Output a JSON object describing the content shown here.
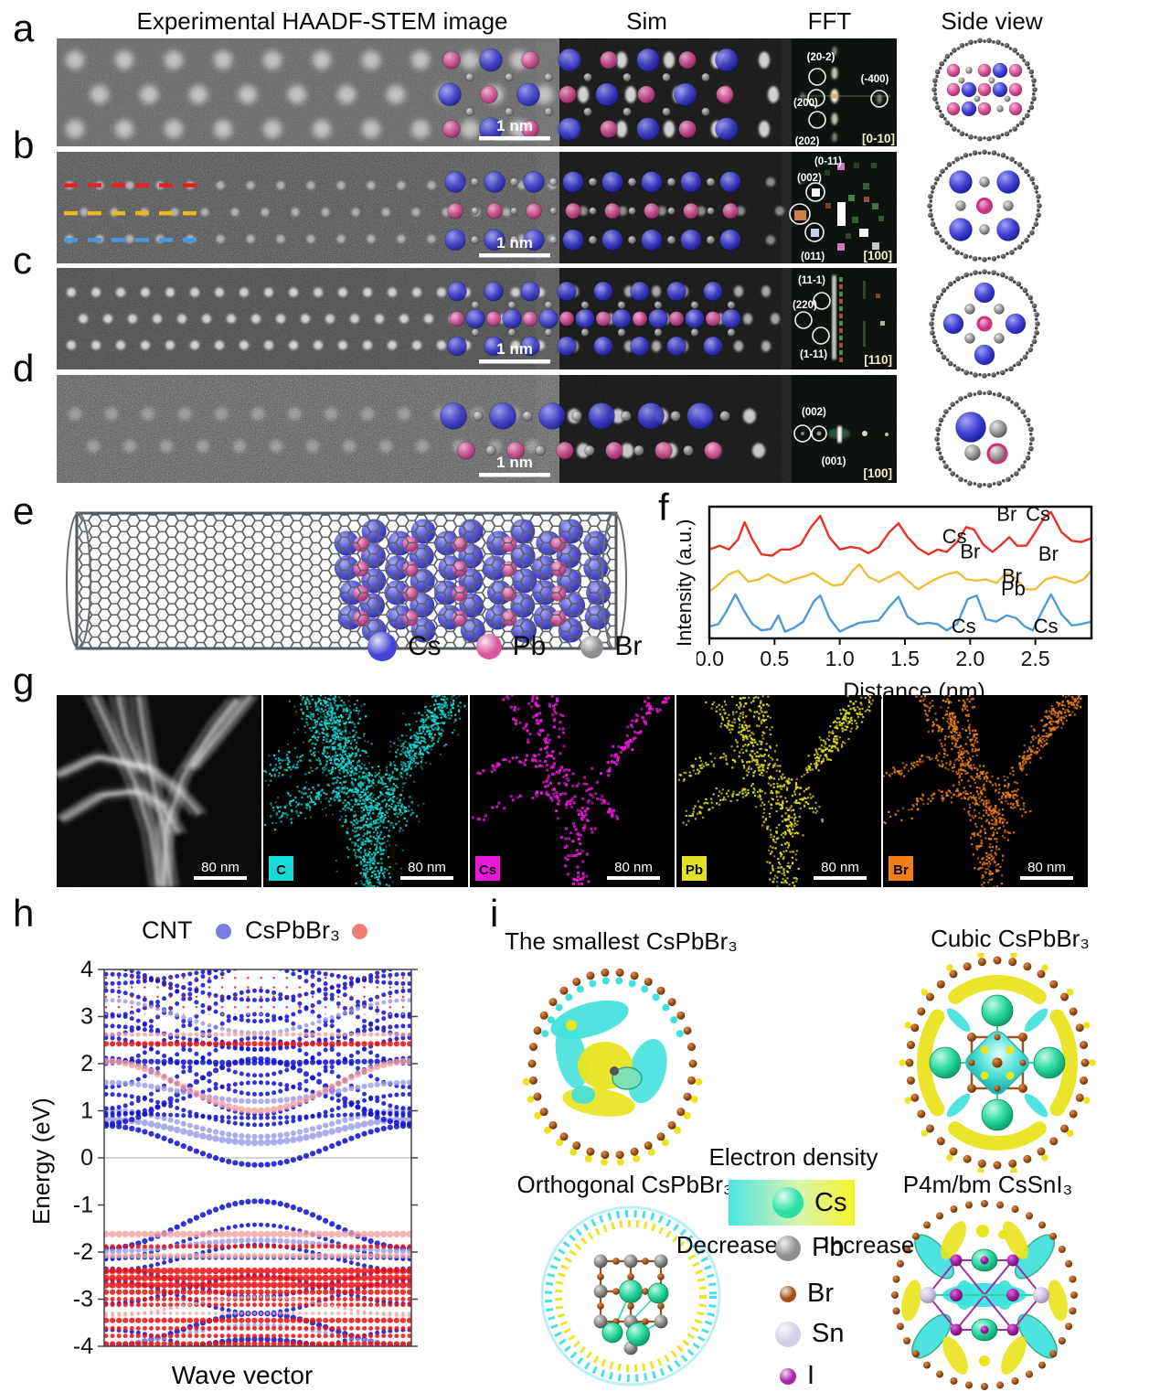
{
  "headers": {
    "experimental": "Experimental HAADF-STEM image",
    "sim": "Sim",
    "fft": "FFT",
    "side_view": "Side view"
  },
  "panel_labels": {
    "a": "a",
    "b": "b",
    "c": "c",
    "d": "d",
    "e": "e",
    "f": "f",
    "g": "g",
    "h": "h",
    "i": "i"
  },
  "atoms": {
    "Cs": {
      "label": "Cs",
      "color": "#4444d8"
    },
    "Pb": {
      "label": "Pb",
      "color": "#d8569a"
    },
    "Br": {
      "label": "Br",
      "color": "#8e8e8e"
    }
  },
  "rows": [
    {
      "label": "a",
      "scale_bar": "1 nm",
      "zone": "[0-10]",
      "fft_spots": [
        "(20-2)",
        "(-400)",
        "(200)",
        "(202)"
      ]
    },
    {
      "label": "b",
      "scale_bar": "1 nm",
      "zone": "[100]",
      "fft_spots": [
        "(0-11)",
        "(002)",
        "(011)"
      ]
    },
    {
      "label": "c",
      "scale_bar": "1 nm",
      "zone": "[110]",
      "fft_spots": [
        "(11-1)",
        "(220)",
        "(1-11)"
      ]
    },
    {
      "label": "d",
      "scale_bar": "1 nm",
      "zone": "[100]",
      "fft_spots": [
        "(002)",
        "(001)"
      ]
    }
  ],
  "panel_e": {
    "legend": [
      {
        "label": "Cs",
        "color": "#4444d4"
      },
      {
        "label": "Pb",
        "color": "#d8569a"
      },
      {
        "label": "Br",
        "color": "#8e8e8e"
      }
    ]
  },
  "panel_g": {
    "maps": [
      {
        "label": "",
        "scale_bar": "80 nm",
        "kind": "haadf",
        "color": "#ffffff"
      },
      {
        "label": "C",
        "scale_bar": "80 nm",
        "kind": "map",
        "color": "#15dcd8"
      },
      {
        "label": "Cs",
        "scale_bar": "80 nm",
        "kind": "map",
        "color": "#ee18dd"
      },
      {
        "label": "Pb",
        "scale_bar": "80 nm",
        "kind": "map",
        "color": "#e6e122",
        "count": 900
      },
      {
        "label": "Br",
        "scale_bar": "80 nm",
        "kind": "map",
        "color": "#ef7f16"
      }
    ]
  },
  "panel_i": {
    "titles": {
      "smallest": "The smallest CsPbBr₃",
      "cubic": "Cubic CsPbBr₃",
      "orthogonal": "Orthogonal CsPbBr₃",
      "p4mbm": "P4m/bm CsSnI₃"
    },
    "colorbar": {
      "title": "Electron density",
      "left_label": "Decrease",
      "right_label": "Increase",
      "from": "#49e6e4",
      "to": "#f4f42a"
    },
    "legend": [
      {
        "label": "Cs",
        "color": "#2be0a6",
        "size": 34
      },
      {
        "label": "Pb",
        "color": "#8f8f8f",
        "size": 28
      },
      {
        "label": "Br",
        "color": "#a24f12",
        "size": 18
      },
      {
        "label": "Sn",
        "color": "#d4cde6",
        "size": 28
      },
      {
        "label": "I",
        "color": "#a822a8",
        "size": 18
      }
    ],
    "iso": {
      "cyan": "#40e0dc",
      "yellow": "#e9e41f",
      "ring": "#8a4a16",
      "bond": "#a0521d",
      "teal": "#2ad8a0"
    }
  },
  "chart_data": [
    {
      "id": "intensity-profile",
      "type": "line",
      "title": "",
      "xlabel": "Distance (nm)",
      "ylabel": "Intensity (a.u.)",
      "xlim": [
        0,
        2.93
      ],
      "xticks": [
        [
          "0.0",
          0
        ],
        [
          "0.5",
          0.5
        ],
        [
          "1.0",
          1.0
        ],
        [
          "1.5",
          1.5
        ],
        [
          "2.0",
          2.0
        ],
        [
          "2.5",
          2.5
        ]
      ],
      "series": [
        {
          "name": "red-line",
          "color": "#e63226",
          "points": [
            [
              0,
              0.7
            ],
            [
              0.08,
              0.73
            ],
            [
              0.15,
              0.7
            ],
            [
              0.22,
              0.78
            ],
            [
              0.27,
              0.92
            ],
            [
              0.33,
              0.78
            ],
            [
              0.4,
              0.66
            ],
            [
              0.48,
              0.65
            ],
            [
              0.55,
              0.7
            ],
            [
              0.62,
              0.7
            ],
            [
              0.7,
              0.74
            ],
            [
              0.78,
              0.88
            ],
            [
              0.85,
              0.97
            ],
            [
              0.92,
              0.8
            ],
            [
              1.0,
              0.7
            ],
            [
              1.08,
              0.72
            ],
            [
              1.15,
              0.71
            ],
            [
              1.22,
              0.67
            ],
            [
              1.3,
              0.72
            ],
            [
              1.38,
              0.84
            ],
            [
              1.45,
              0.91
            ],
            [
              1.52,
              0.8
            ],
            [
              1.6,
              0.71
            ],
            [
              1.68,
              0.66
            ],
            [
              1.75,
              0.7
            ],
            [
              1.82,
              0.68
            ],
            [
              1.9,
              0.76
            ],
            [
              1.97,
              0.88
            ],
            [
              2.03,
              0.86
            ],
            [
              2.1,
              0.74
            ],
            [
              2.17,
              0.68
            ],
            [
              2.24,
              0.74
            ],
            [
              2.3,
              0.8
            ],
            [
              2.36,
              0.73
            ],
            [
              2.43,
              0.73
            ],
            [
              2.5,
              0.84
            ],
            [
              2.57,
              0.96
            ],
            [
              2.62,
              1.0
            ],
            [
              2.7,
              0.84
            ],
            [
              2.78,
              0.77
            ],
            [
              2.85,
              0.76
            ],
            [
              2.93,
              0.79
            ]
          ]
        },
        {
          "name": "yellow-line",
          "color": "#eebd3a",
          "points": [
            [
              0,
              0.36
            ],
            [
              0.07,
              0.42
            ],
            [
              0.15,
              0.5
            ],
            [
              0.22,
              0.53
            ],
            [
              0.3,
              0.44
            ],
            [
              0.38,
              0.46
            ],
            [
              0.45,
              0.5
            ],
            [
              0.52,
              0.46
            ],
            [
              0.58,
              0.43
            ],
            [
              0.65,
              0.46
            ],
            [
              0.72,
              0.48
            ],
            [
              0.8,
              0.51
            ],
            [
              0.88,
              0.45
            ],
            [
              0.95,
              0.41
            ],
            [
              1.02,
              0.42
            ],
            [
              1.1,
              0.53
            ],
            [
              1.15,
              0.58
            ],
            [
              1.22,
              0.48
            ],
            [
              1.3,
              0.44
            ],
            [
              1.38,
              0.48
            ],
            [
              1.45,
              0.52
            ],
            [
              1.52,
              0.45
            ],
            [
              1.6,
              0.38
            ],
            [
              1.68,
              0.43
            ],
            [
              1.75,
              0.47
            ],
            [
              1.82,
              0.5
            ],
            [
              1.9,
              0.52
            ],
            [
              1.97,
              0.46
            ],
            [
              2.05,
              0.45
            ],
            [
              2.12,
              0.46
            ],
            [
              2.2,
              0.43
            ],
            [
              2.28,
              0.51
            ],
            [
              2.35,
              0.47
            ],
            [
              2.42,
              0.38
            ],
            [
              2.5,
              0.38
            ],
            [
              2.58,
              0.46
            ],
            [
              2.65,
              0.48
            ],
            [
              2.72,
              0.46
            ],
            [
              2.8,
              0.43
            ],
            [
              2.87,
              0.46
            ],
            [
              2.93,
              0.53
            ]
          ]
        },
        {
          "name": "blue-line",
          "color": "#4e9ad5",
          "points": [
            [
              0,
              0.08
            ],
            [
              0.07,
              0.1
            ],
            [
              0.13,
              0.2
            ],
            [
              0.2,
              0.34
            ],
            [
              0.27,
              0.2
            ],
            [
              0.33,
              0.1
            ],
            [
              0.4,
              0.05
            ],
            [
              0.47,
              0.06
            ],
            [
              0.53,
              0.17
            ],
            [
              0.58,
              0.04
            ],
            [
              0.65,
              0.07
            ],
            [
              0.72,
              0.12
            ],
            [
              0.8,
              0.28
            ],
            [
              0.85,
              0.33
            ],
            [
              0.92,
              0.15
            ],
            [
              1.0,
              0.04
            ],
            [
              1.08,
              0.08
            ],
            [
              1.15,
              0.11
            ],
            [
              1.22,
              0.12
            ],
            [
              1.3,
              0.13
            ],
            [
              1.38,
              0.24
            ],
            [
              1.45,
              0.32
            ],
            [
              1.52,
              0.16
            ],
            [
              1.6,
              0.1
            ],
            [
              1.68,
              0.11
            ],
            [
              1.75,
              0.1
            ],
            [
              1.82,
              0.05
            ],
            [
              1.9,
              0.1
            ],
            [
              1.98,
              0.3
            ],
            [
              2.05,
              0.33
            ],
            [
              2.12,
              0.14
            ],
            [
              2.2,
              0.12
            ],
            [
              2.28,
              0.17
            ],
            [
              2.35,
              0.15
            ],
            [
              2.42,
              0.08
            ],
            [
              2.48,
              0.05
            ],
            [
              2.55,
              0.2
            ],
            [
              2.62,
              0.34
            ],
            [
              2.7,
              0.18
            ],
            [
              2.78,
              0.09
            ],
            [
              2.85,
              0.1
            ],
            [
              2.93,
              0.12
            ]
          ]
        }
      ],
      "annotations": [
        {
          "x": 1.88,
          "y": 0.72,
          "t": "Cs"
        },
        {
          "x": 2.28,
          "y": 0.9,
          "t": "Br"
        },
        {
          "x": 2.52,
          "y": 0.9,
          "t": "Cs"
        },
        {
          "x": 2.0,
          "y": 0.6,
          "t": "Br"
        },
        {
          "x": 2.33,
          "y": 0.3,
          "t": "Pb"
        },
        {
          "x": 2.6,
          "y": 0.58,
          "t": "Br"
        },
        {
          "x": 1.95,
          "y": 0.0,
          "t": "Cs"
        },
        {
          "x": 2.32,
          "y": 0.4,
          "t": "Br"
        },
        {
          "x": 2.58,
          "y": 0.0,
          "t": "Cs"
        }
      ]
    },
    {
      "id": "band-structure",
      "type": "scatter",
      "xlabel": "Wave vector",
      "ylabel": "Energy (eV)",
      "ylim": [
        -4,
        4
      ],
      "yticks": [
        "4",
        "3",
        "2",
        "1",
        "0",
        "-1",
        "-2",
        "-3",
        "-4"
      ],
      "legend": [
        {
          "label": "CNT",
          "color": "#7b7be2"
        },
        {
          "label": "CsPbBr₃",
          "color": "#f47c74"
        }
      ],
      "colors": {
        "c": "#1414d0",
        "cl": "#9898e8",
        "p": "#ee1414",
        "pl": "#f5a0a0"
      },
      "bands": [
        [
          0.68,
          -0.15,
          "c",
          5
        ],
        [
          0.82,
          0.32,
          "cl",
          6
        ],
        [
          1.02,
          0.45,
          "cl",
          5
        ],
        [
          0.95,
          0.85,
          "c",
          4
        ],
        [
          1.35,
          0.7,
          "c",
          4
        ],
        [
          0.72,
          2.1,
          "c",
          5
        ],
        [
          1.05,
          2.55,
          "c",
          4
        ],
        [
          1.5,
          3.05,
          "c",
          4
        ],
        [
          2.0,
          3.55,
          "c",
          4
        ],
        [
          2.6,
          4.1,
          "c",
          4
        ],
        [
          2.12,
          0.92,
          "c",
          4
        ],
        [
          2.55,
          1.35,
          "c",
          4
        ],
        [
          3.05,
          1.75,
          "c",
          4
        ],
        [
          3.55,
          2.3,
          "c",
          4
        ],
        [
          4.05,
          2.9,
          "c",
          4
        ],
        [
          2.05,
          2.02,
          "c",
          5
        ],
        [
          3.0,
          4.2,
          "c",
          4
        ],
        [
          3.35,
          2.65,
          "cl",
          4
        ],
        [
          3.9,
          3.35,
          "c",
          4
        ],
        [
          1.6,
          1.2,
          "cl",
          5
        ],
        [
          0.9,
          1.6,
          "c",
          4
        ],
        [
          2.8,
          2.3,
          "c",
          4
        ],
        [
          3.7,
          4.05,
          "c",
          4
        ],
        [
          2.42,
          2.42,
          "p",
          5
        ],
        [
          2.62,
          2.62,
          "pl",
          4
        ],
        [
          2.05,
          1.0,
          "pl",
          6
        ],
        [
          3.2,
          3.2,
          "p",
          2
        ],
        [
          3.42,
          3.42,
          "p",
          2
        ],
        [
          3.62,
          3.62,
          "p",
          2
        ],
        [
          3.82,
          3.82,
          "p",
          2
        ],
        [
          3.05,
          3.05,
          "pl",
          2
        ],
        [
          -1.92,
          -0.92,
          "c",
          5
        ],
        [
          -2.15,
          -1.42,
          "c",
          4
        ],
        [
          -2.4,
          -1.85,
          "c",
          4
        ],
        [
          -2.12,
          -2.12,
          "c",
          4
        ],
        [
          -2.35,
          -2.95,
          "c",
          4
        ],
        [
          -3.1,
          -2.5,
          "c",
          4
        ],
        [
          -4.0,
          -3.3,
          "c",
          5
        ],
        [
          -3.65,
          -4.25,
          "c",
          4
        ],
        [
          -3.95,
          -3.55,
          "cl",
          4
        ],
        [
          -4.25,
          -3.85,
          "c",
          5
        ],
        [
          -2.6,
          -3.3,
          "c",
          4
        ],
        [
          -1.98,
          -1.75,
          "cl",
          5
        ],
        [
          -1.62,
          -1.62,
          "pl",
          6
        ],
        [
          -1.88,
          -1.88,
          "p",
          4
        ],
        [
          -2.08,
          -2.08,
          "pl",
          5
        ],
        [
          -2.4,
          -2.4,
          "p",
          6
        ],
        [
          -2.55,
          -2.55,
          "p",
          6
        ],
        [
          -2.7,
          -2.7,
          "p",
          6
        ],
        [
          -2.85,
          -2.85,
          "p",
          5
        ],
        [
          -3.0,
          -3.0,
          "p",
          4
        ],
        [
          -3.12,
          -3.12,
          "p",
          4
        ],
        [
          -3.3,
          -3.3,
          "pl",
          3
        ],
        [
          -3.45,
          -3.45,
          "p",
          5
        ],
        [
          -3.62,
          -3.62,
          "p",
          4
        ],
        [
          -3.78,
          -3.78,
          "p",
          4
        ],
        [
          -3.95,
          -3.95,
          "p",
          5
        ],
        [
          -3.35,
          -2.95,
          "pl",
          3
        ]
      ]
    }
  ]
}
